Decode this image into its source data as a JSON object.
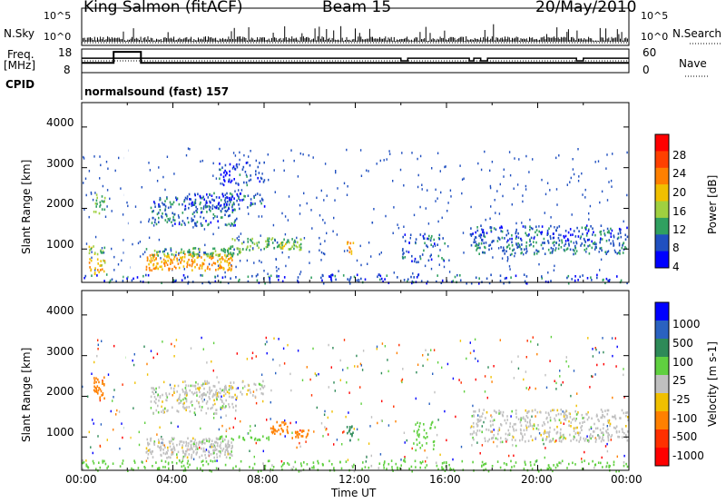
{
  "header": {
    "station": "King Salmon (fitACF)",
    "beam": "Beam 15",
    "date": "20/May/2010"
  },
  "summary": {
    "nsky_label": "N.Sky",
    "nsearch_label": "N.Search",
    "freq_label": "Freq.",
    "freq_unit": "[MHz]",
    "nave_label": "Nave",
    "cpid_label": "CPID",
    "cpid_text": "normalsound (fast) 157",
    "noise_ticks": [
      "10^5",
      "10^0"
    ],
    "freq_ticks": [
      "18",
      "8"
    ],
    "nave_ticks": [
      "60",
      "0"
    ]
  },
  "axes": {
    "ylabel": "Slant Range [km]",
    "xlabel": "Time UT",
    "range_ticks": [
      "1000",
      "2000",
      "3000",
      "4000"
    ],
    "time_ticks": [
      "00:00",
      "04:00",
      "08:00",
      "12:00",
      "16:00",
      "20:00",
      "00:00"
    ]
  },
  "power_colorbar": {
    "label": "Power [dB]",
    "ticks": [
      "4",
      "8",
      "12",
      "16",
      "20",
      "24",
      "28"
    ],
    "colors": [
      "#0000ff",
      "#2050c0",
      "#30a060",
      "#a0d040",
      "#f0c000",
      "#ff8000",
      "#ff4000",
      "#ff0000"
    ]
  },
  "velocity_colorbar": {
    "label": "Velocity [m s-1]",
    "ticks": [
      "1000",
      "500",
      "100",
      "25",
      "-25",
      "-100",
      "-500",
      "-1000"
    ],
    "colors": [
      "#0000ff",
      "#2a62c0",
      "#2e8a58",
      "#60d040",
      "#c0c0c0",
      "#f0c000",
      "#ff8000",
      "#ff3000",
      "#ff0000"
    ]
  },
  "chart_data": [
    {
      "type": "line",
      "name": "summary",
      "x_range": [
        0,
        24
      ],
      "series": [
        {
          "name": "Freq.",
          "unit": "MHz",
          "ylim": [
            8,
            18
          ],
          "x": [
            0,
            1.4,
            1.4,
            2.6,
            2.6,
            24
          ],
          "values": [
            12,
            12,
            17.5,
            17.5,
            12,
            12
          ]
        },
        {
          "name": "Nave",
          "ylim": [
            0,
            60
          ],
          "x": [
            0,
            14.0,
            14.0,
            14.3,
            14.3,
            17.0,
            17.0,
            17.2,
            17.2,
            17.5,
            17.5,
            17.8,
            17.8,
            21.7,
            21.7,
            22.0,
            22.0,
            24
          ],
          "values": [
            38,
            38,
            30,
            30,
            38,
            38,
            30,
            30,
            38,
            38,
            30,
            30,
            38,
            38,
            30,
            30,
            38,
            38
          ]
        }
      ]
    },
    {
      "type": "heatmap",
      "name": "power",
      "xlabel": "Time UT",
      "ylabel": "Slant Range [km]",
      "xlim": [
        0,
        24
      ],
      "ylim": [
        180,
        4600
      ],
      "zlabel": "Power [dB]",
      "zlim": [
        0,
        32
      ],
      "regions": [
        {
          "t": [
            0.3,
            1.0
          ],
          "r": [
            900,
            1100
          ],
          "dB": 14,
          "density": 0.85
        },
        {
          "t": [
            0.3,
            1.0
          ],
          "r": [
            400,
            800
          ],
          "dB": 18,
          "density": 0.7
        },
        {
          "t": [
            0.5,
            1.0
          ],
          "r": [
            1900,
            2400
          ],
          "dB": 12,
          "density": 0.6
        },
        {
          "t": [
            2.8,
            6.6
          ],
          "r": [
            500,
            900
          ],
          "dB": 20,
          "density": 0.95
        },
        {
          "t": [
            2.8,
            7.0
          ],
          "r": [
            850,
            1050
          ],
          "dB": 10,
          "density": 0.9
        },
        {
          "t": [
            3.0,
            6.8
          ],
          "r": [
            1600,
            2300
          ],
          "dB": 7,
          "density": 0.5
        },
        {
          "t": [
            4.5,
            8.0
          ],
          "r": [
            2000,
            2400
          ],
          "dB": 6,
          "density": 0.55
        },
        {
          "t": [
            6.5,
            9.6
          ],
          "r": [
            1000,
            1300
          ],
          "dB": 11,
          "density": 0.65
        },
        {
          "t": [
            8.6,
            9.6
          ],
          "r": [
            1000,
            1200
          ],
          "dB": 14,
          "density": 0.8
        },
        {
          "t": [
            11.6,
            11.9
          ],
          "r": [
            900,
            1200
          ],
          "dB": 20,
          "density": 0.9
        },
        {
          "t": [
            6.0,
            8.0
          ],
          "r": [
            2600,
            3200
          ],
          "dB": 5,
          "density": 0.4
        },
        {
          "t": [
            14.0,
            16.0
          ],
          "r": [
            700,
            1400
          ],
          "dB": 6,
          "density": 0.35
        },
        {
          "t": [
            17.0,
            24.0
          ],
          "r": [
            1200,
            1600
          ],
          "dB": 6,
          "density": 0.5
        },
        {
          "t": [
            17.0,
            24.0
          ],
          "r": [
            900,
            1200
          ],
          "dB": 8,
          "density": 0.6
        },
        {
          "t": [
            0.0,
            24.0
          ],
          "r": [
            180,
            400
          ],
          "dB": 6,
          "density": 0.3
        }
      ]
    },
    {
      "type": "heatmap",
      "name": "velocity",
      "xlabel": "Time UT",
      "ylabel": "Slant Range [km]",
      "xlim": [
        0,
        24
      ],
      "ylim": [
        180,
        4600
      ],
      "zlabel": "Velocity [m s-1]",
      "zlim": [
        -1000,
        1000
      ],
      "regions": [
        {
          "t": [
            0.5,
            1.0
          ],
          "r": [
            1900,
            2500
          ],
          "v": -300,
          "density": 0.85
        },
        {
          "t": [
            2.8,
            6.6
          ],
          "r": [
            500,
            1000
          ],
          "v": 0,
          "density": 0.95
        },
        {
          "t": [
            3.0,
            6.8
          ],
          "r": [
            1600,
            2300
          ],
          "v": 0,
          "density": 0.5
        },
        {
          "t": [
            4.5,
            8.0
          ],
          "r": [
            2000,
            2400
          ],
          "v": 0,
          "density": 0.5
        },
        {
          "t": [
            6.0,
            8.2
          ],
          "r": [
            950,
            1050
          ],
          "v": 60,
          "density": 0.9
        },
        {
          "t": [
            8.2,
            9.0
          ],
          "r": [
            1100,
            1400
          ],
          "v": -400,
          "density": 0.9
        },
        {
          "t": [
            9.0,
            10.0
          ],
          "r": [
            1000,
            1200
          ],
          "v": -300,
          "density": 0.9
        },
        {
          "t": [
            11.6,
            11.9
          ],
          "r": [
            900,
            1300
          ],
          "v": 300,
          "density": 0.9
        },
        {
          "t": [
            14.5,
            15.5
          ],
          "r": [
            700,
            1400
          ],
          "v": 60,
          "density": 0.4
        },
        {
          "t": [
            17.0,
            24.0
          ],
          "r": [
            1200,
            1700
          ],
          "v": 0,
          "density": 0.5
        },
        {
          "t": [
            17.0,
            24.0
          ],
          "r": [
            900,
            1200
          ],
          "v": 0,
          "density": 0.6
        },
        {
          "t": [
            0.0,
            24.0
          ],
          "r": [
            180,
            450
          ],
          "v": 50,
          "density": 0.35
        }
      ]
    }
  ]
}
